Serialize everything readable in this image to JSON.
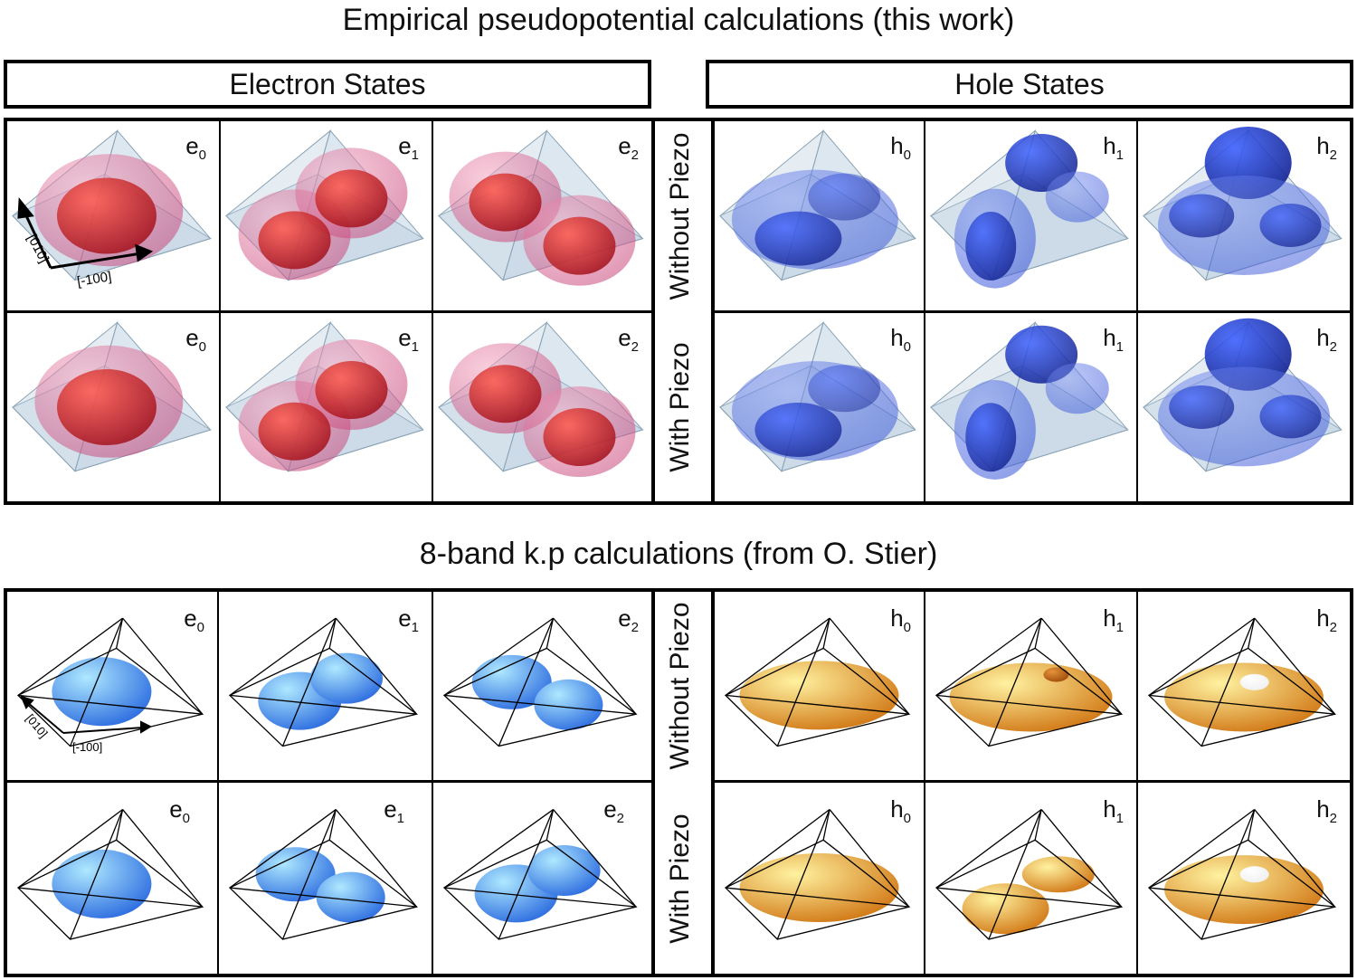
{
  "titles": {
    "top": "Empirical pseudopotential calculations (this work)",
    "bottom": "8-band k.p calculations (from O. Stier)"
  },
  "headers": {
    "electron": "Electron States",
    "hole": "Hole States"
  },
  "row_labels": {
    "without": "Without Piezo",
    "with": "With Piezo"
  },
  "axis_labels": {
    "y": "[010]",
    "x": "[-100]"
  },
  "state_labels": {
    "e": [
      "e",
      "e",
      "e"
    ],
    "h": [
      "h",
      "h",
      "h"
    ],
    "sub": [
      "0",
      "1",
      "2"
    ]
  },
  "colors": {
    "epm_electron": "#d6336b",
    "epm_hole": "#2d4fe0",
    "kp_electron": "#4aa9ef",
    "kp_hole": "#f0b43a",
    "pyramid": "#a8c2d6"
  }
}
